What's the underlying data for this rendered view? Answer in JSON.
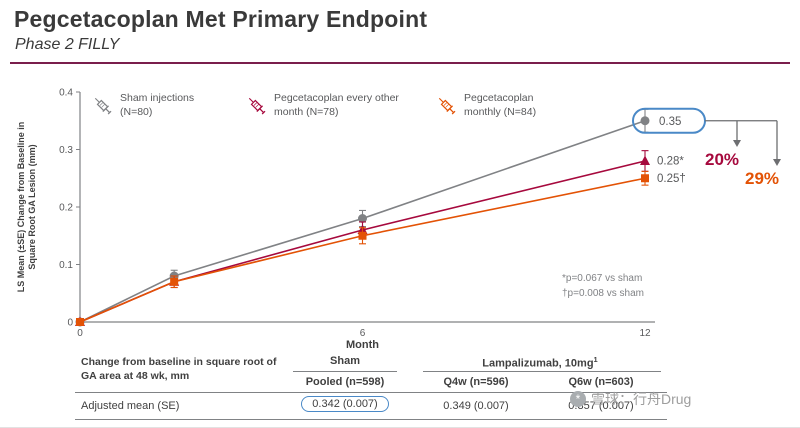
{
  "header": {
    "title": "Pegcetacoplan Met Primary Endpoint",
    "subtitle": "Phase 2 FILLY"
  },
  "colors": {
    "sham": "#808285",
    "every_other_month": "#A6093D",
    "monthly": "#E35205",
    "callout": "#4A89C7",
    "divider": "#7A1E4C",
    "axis": "#808285",
    "annotation_line": "#6D6E71"
  },
  "chart_data": {
    "type": "line",
    "x": [
      0,
      2,
      6,
      12
    ],
    "xticks": [
      0,
      6,
      12
    ],
    "xlim": [
      0,
      12
    ],
    "xlabel": "Month",
    "ylabel_lines": [
      "LS Mean (±SE) Change from Baseline in",
      "Square Root GA Lesion (mm)"
    ],
    "ylim": [
      0,
      0.4
    ],
    "yticks": [
      0,
      0.1,
      0.2,
      0.3,
      0.4
    ],
    "grid": false,
    "legend_position": "top-inside",
    "series": [
      {
        "name": "Sham injections (N=80)",
        "color": "#808285",
        "marker": "circle",
        "values": [
          0,
          0.08,
          0.18,
          0.35
        ],
        "errors": [
          0,
          0.01,
          0.014,
          0.02
        ],
        "end_label": "0.35",
        "end_label_boxed": true
      },
      {
        "name": "Pegcetacoplan every other month (N=78)",
        "color": "#A6093D",
        "marker": "triangle",
        "values": [
          0,
          0.07,
          0.16,
          0.28
        ],
        "errors": [
          0,
          0.01,
          0.014,
          0.018
        ],
        "end_label": "0.28*",
        "end_label_boxed": false
      },
      {
        "name": "Pegcetacoplan monthly (N=84)",
        "color": "#E35205",
        "marker": "square",
        "values": [
          0,
          0.07,
          0.15,
          0.25
        ],
        "errors": [
          0,
          0.01,
          0.014,
          0.012
        ],
        "end_label": "0.25†",
        "end_label_boxed": false
      }
    ],
    "annotations": [
      {
        "text": "20%",
        "color": "#A6093D"
      },
      {
        "text": "29%",
        "color": "#E35205"
      }
    ],
    "footnotes": [
      "*p=0.067 vs sham",
      "†p=0.008 vs sham"
    ]
  },
  "table": {
    "row_label_header": "Change from baseline in square root of GA area at 48 wk, mm",
    "group_headers": [
      {
        "label": "Sham",
        "sup": ""
      },
      {
        "label": "Lampalizumab, 10mg",
        "sup": "1"
      }
    ],
    "col_headers": [
      "Pooled (n=598)",
      "Q4w (n=596)",
      "Q6w (n=603)"
    ],
    "rows": [
      {
        "label": "Adjusted mean (SE)",
        "values": [
          "0.342 (0.007)",
          "0.349 (0.007)",
          "0.357 (0.007)"
        ],
        "highlighted_value_index": 0
      }
    ]
  },
  "watermark": {
    "text": "雪球：行舟Drug"
  }
}
